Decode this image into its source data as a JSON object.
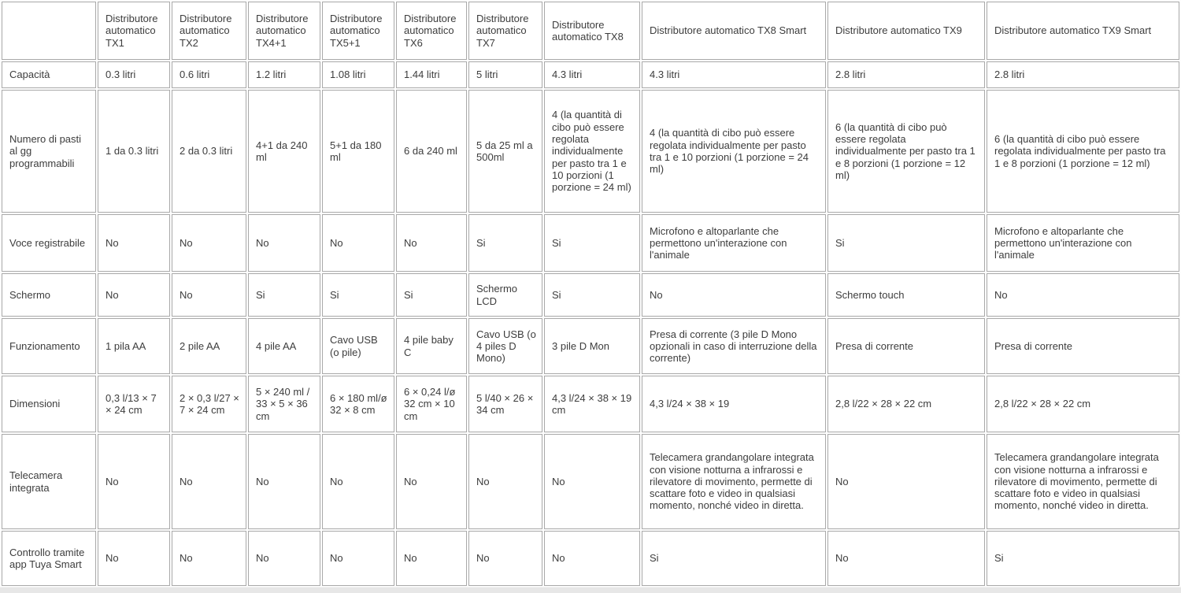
{
  "table": {
    "columns": [
      {
        "label": ""
      },
      {
        "label": "Distributore automatico TX1"
      },
      {
        "label": "Distributore automatico TX2"
      },
      {
        "label": "Distributore automatico TX4+1"
      },
      {
        "label": "Distributore automatico TX5+1"
      },
      {
        "label": "Distributore automatico TX6"
      },
      {
        "label": "Distributore automatico TX7"
      },
      {
        "label": "Distributore automatico TX8"
      },
      {
        "label": "Distributore automatico TX8 Smart"
      },
      {
        "label": "Distributore automatico TX9"
      },
      {
        "label": "Distributore automatico TX9 Smart"
      }
    ],
    "rows": [
      {
        "label": "Capacità",
        "cells": [
          "0.3 litri",
          "0.6 litri",
          "1.2 litri",
          "1.08 litri",
          "1.44 litri",
          "5 litri",
          "4.3 litri",
          "4.3 litri",
          "2.8 litri",
          "2.8 litri"
        ]
      },
      {
        "label": "Numero di pasti al gg programmabili",
        "cells": [
          "1 da 0.3 litri",
          "2 da 0.3 litri",
          "4+1 da 240 ml",
          "5+1 da 180 ml",
          "6 da 240 ml",
          "5 da 25 ml a 500ml",
          "4 (la quantità di cibo può essere regolata individualmente per pasto tra 1 e 10 porzioni (1 porzione = 24 ml)",
          "4 (la quantità di cibo può essere regolata individualmente per pasto tra 1 e 10 porzioni (1 porzione = 24 ml)",
          "6 (la quantità di cibo può essere regolata individualmente per pasto tra 1 e 8 porzioni (1 porzione = 12 ml)",
          "6 (la quantità di cibo può essere regolata individualmente per pasto tra 1 e 8 porzioni (1 porzione = 12 ml)"
        ]
      },
      {
        "label": "Voce registrabile",
        "cells": [
          "No",
          "No",
          "No",
          "No",
          "No",
          "Si",
          "Si",
          "Microfono e altoparlante che permettono un'interazione con l'animale",
          "Si",
          "Microfono e altoparlante che permettono un'interazione con l'animale"
        ]
      },
      {
        "label": "Schermo",
        "cells": [
          "No",
          "No",
          "Si",
          "Si",
          "Si",
          "Schermo LCD",
          "Si",
          "No",
          "Schermo touch",
          "No"
        ]
      },
      {
        "label": "Funzionamento",
        "cells": [
          "1 pila AA",
          "2 pile AA",
          "4 pile AA",
          "Cavo USB (o pile)",
          "4 pile baby C",
          "Cavo USB (o 4 piles D Mono)",
          "3 pile D Mon",
          "Presa di corrente (3 pile D Mono opzionali in caso di interruzione della corrente)",
          "Presa di corrente",
          "Presa di corrente"
        ]
      },
      {
        "label": "Dimensioni",
        "cells": [
          "0,3 l/13 × 7 × 24 cm",
          "2 × 0,3 l/27 × 7 × 24 cm",
          "5 × 240 ml / 33 × 5 × 36 cm",
          "6 × 180 ml/ø 32 × 8 cm",
          "6 × 0,24 l/ø 32 cm × 10 cm",
          "5 l/40 × 26 × 34 cm",
          "4,3 l/24 × 38 × 19 cm",
          "4,3 l/24 × 38 × 19",
          "2,8 l/22 × 28 × 22 cm",
          "2,8 l/22 × 28 × 22 cm"
        ]
      },
      {
        "label": "Telecamera integrata",
        "cells": [
          "No",
          "No",
          "No",
          "No",
          "No",
          "No",
          "No",
          "Telecamera grandangolare integrata con visione notturna a infrarossi e rilevatore di movimento, permette di scattare foto e video in qualsiasi momento, nonché video in diretta.",
          "No",
          "Telecamera grandangolare integrata con visione notturna a infrarossi e rilevatore di movimento, permette di scattare foto e video in qualsiasi momento, nonché video in diretta."
        ]
      },
      {
        "label": "Controllo tramite app Tuya Smart",
        "cells": [
          "No",
          "No",
          "No",
          "No",
          "No",
          "No",
          "No",
          "Si",
          "No",
          "Si"
        ]
      }
    ]
  },
  "colors": {
    "cell_border": "#a9a9a9",
    "cell_background": "#ffffff",
    "text": "#3d3d3d",
    "scrollbar_track": "#e7e7e7"
  }
}
